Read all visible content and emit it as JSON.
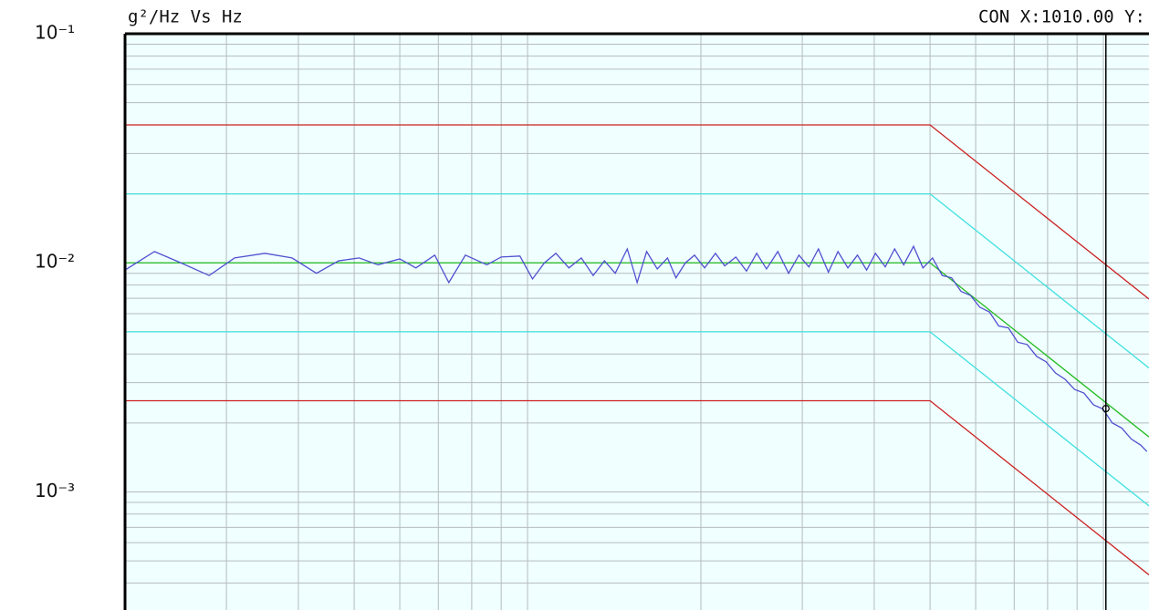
{
  "chart_data": {
    "type": "line",
    "title": "g²/Hz Vs Hz",
    "status_text": "CON X:1010.00 Y:",
    "log_x": true,
    "log_y": true,
    "xlim": [
      20,
      1200
    ],
    "ylim": [
      0.1,
      0.000305
    ],
    "yticks": [
      {
        "value": 0.1,
        "label": "10⁻¹"
      },
      {
        "value": 0.01,
        "label": "10⁻²"
      },
      {
        "value": 0.001,
        "label": "10⁻³"
      }
    ],
    "y_minor_grid": [
      0.09,
      0.08,
      0.07,
      0.06,
      0.05,
      0.04,
      0.03,
      0.02,
      0.009,
      0.008,
      0.007,
      0.006,
      0.005,
      0.004,
      0.003,
      0.002,
      0.0009,
      0.0008,
      0.0007,
      0.0006,
      0.0005,
      0.0004
    ],
    "x_grid": [
      30,
      40,
      50,
      60,
      70,
      80,
      90,
      100,
      200,
      300,
      400,
      500,
      600,
      700,
      800,
      900,
      1000
    ],
    "grid_color": "#b4bcc0",
    "background": "#f0ffff",
    "cursor_x": 1010,
    "cursor_color": "#000000",
    "series": [
      {
        "color": "#cc2020",
        "x": [
          20,
          500,
          1200
        ],
        "values": [
          0.04,
          0.04,
          0.006944
        ]
      },
      {
        "color": "#40e0e0",
        "x": [
          20,
          500,
          1200
        ],
        "values": [
          0.02,
          0.02,
          0.003472
        ]
      },
      {
        "color": "#22bb22",
        "x": [
          20,
          500,
          1200
        ],
        "values": [
          0.01,
          0.01,
          0.001736
        ]
      },
      {
        "color": "#40e0e0",
        "x": [
          20,
          500,
          1200
        ],
        "values": [
          0.005,
          0.005,
          0.000868
        ]
      },
      {
        "color": "#cc2020",
        "x": [
          20,
          500,
          1200
        ],
        "values": [
          0.0025,
          0.0025,
          0.000434
        ]
      },
      {
        "color": "#5050d0",
        "x": [
          20,
          22.5,
          25,
          28,
          31,
          35,
          39,
          43,
          47,
          51,
          55,
          60,
          64,
          69,
          73,
          78,
          85,
          90,
          97,
          102,
          107,
          112,
          118,
          124,
          130,
          136,
          142,
          149,
          155,
          161,
          168,
          175,
          181,
          188,
          195,
          203,
          212,
          220,
          230,
          240,
          250,
          260,
          272,
          284,
          296,
          308,
          320,
          333,
          346,
          360,
          374,
          388,
          402,
          418,
          434,
          450,
          468,
          486,
          505,
          525,
          545,
          566,
          588,
          610,
          634,
          658,
          684,
          710,
          737,
          766,
          795,
          826,
          858,
          891,
          925,
          961,
          998,
          1036,
          1076,
          1118,
          1161,
          1190
        ],
        "values": [
          0.0093,
          0.0112,
          0.01,
          0.0088,
          0.0105,
          0.011,
          0.0105,
          0.009,
          0.0102,
          0.0105,
          0.0098,
          0.0104,
          0.0095,
          0.0108,
          0.0082,
          0.0108,
          0.0098,
          0.0106,
          0.0107,
          0.0085,
          0.01,
          0.011,
          0.0095,
          0.0105,
          0.0088,
          0.0102,
          0.009,
          0.0115,
          0.0082,
          0.0112,
          0.0094,
          0.0105,
          0.0086,
          0.01,
          0.0108,
          0.0095,
          0.011,
          0.0097,
          0.0106,
          0.0092,
          0.011,
          0.0094,
          0.0112,
          0.009,
          0.0108,
          0.0096,
          0.0115,
          0.0091,
          0.0112,
          0.0095,
          0.0108,
          0.0093,
          0.011,
          0.0096,
          0.0115,
          0.0098,
          0.0118,
          0.0095,
          0.0105,
          0.0088,
          0.0086,
          0.0075,
          0.0072,
          0.0064,
          0.0061,
          0.0053,
          0.0052,
          0.0045,
          0.0044,
          0.0039,
          0.0037,
          0.0033,
          0.0031,
          0.0028,
          0.0027,
          0.0024,
          0.0023,
          0.002,
          0.0019,
          0.0017,
          0.0016,
          0.0015
        ]
      }
    ],
    "cursor_marker": {
      "x": 1010,
      "value": 0.00231
    }
  }
}
